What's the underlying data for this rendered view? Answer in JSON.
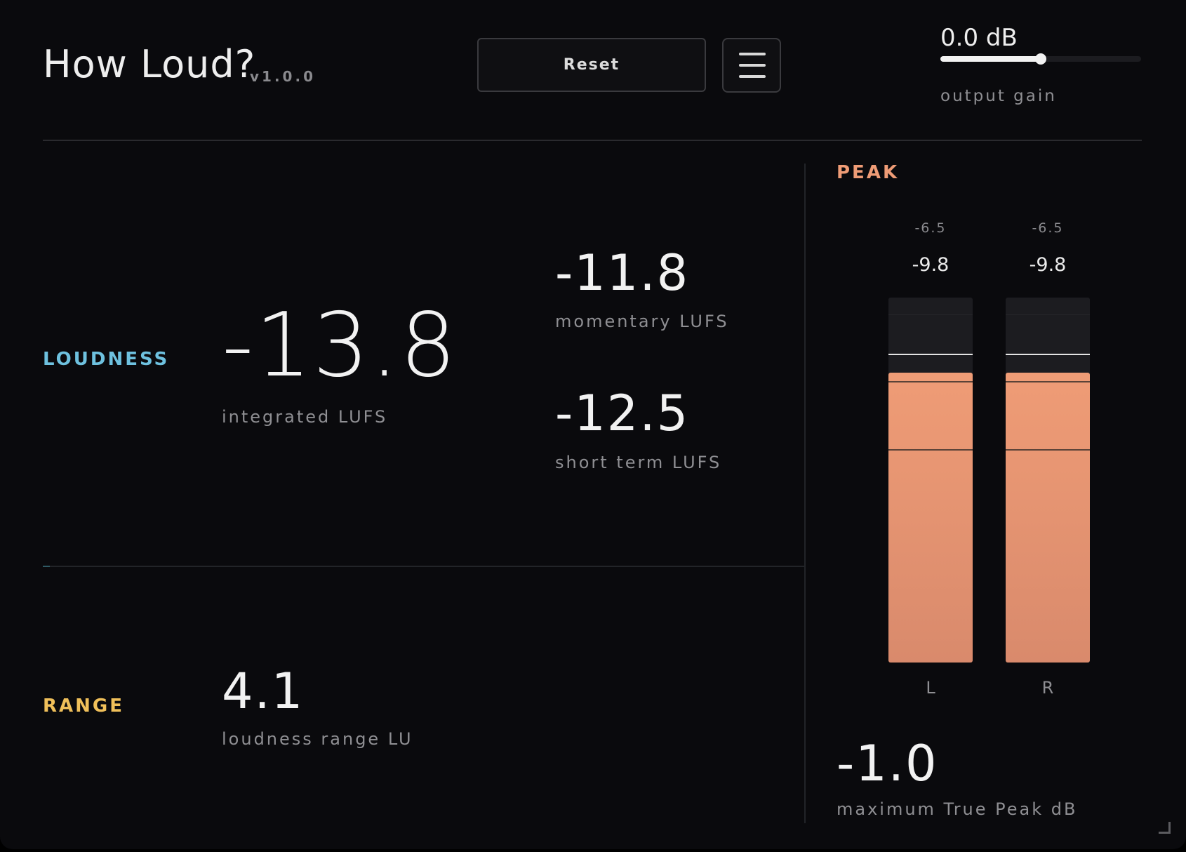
{
  "header": {
    "title": "How Loud?",
    "version": "v1.0.0",
    "reset_label": "Reset",
    "menu_icon": "hamburger-menu-icon",
    "output_gain": {
      "value_text": "0.0 dB",
      "label": "output gain",
      "fraction": 0.5
    }
  },
  "loudness": {
    "section_label": "LOUDNESS",
    "integrated": {
      "value": "-13.8",
      "caption": "integrated LUFS"
    },
    "momentary": {
      "value": "-11.8",
      "caption": "momentary LUFS"
    },
    "short_term": {
      "value": "-12.5",
      "caption": "short term LUFS"
    }
  },
  "range": {
    "section_label": "RANGE",
    "value": "4.1",
    "caption": "loudness range LU"
  },
  "peak": {
    "section_label": "PEAK",
    "channels": [
      {
        "name": "L",
        "max": "-6.5",
        "current": "-9.8",
        "level_fraction": 0.795,
        "hold_fraction": 0.847
      },
      {
        "name": "R",
        "max": "-6.5",
        "current": "-9.8",
        "level_fraction": 0.795,
        "hold_fraction": 0.847
      }
    ],
    "true_peak": {
      "value": "-1.0",
      "caption": "maximum True Peak dB"
    }
  },
  "colors": {
    "background": "#0a0a0d",
    "loudness_accent": "#6ec1df",
    "range_accent": "#f0c05a",
    "peak_accent": "#ef9c76",
    "text_primary": "#f2f2f2",
    "text_secondary": "#8f8f93"
  }
}
